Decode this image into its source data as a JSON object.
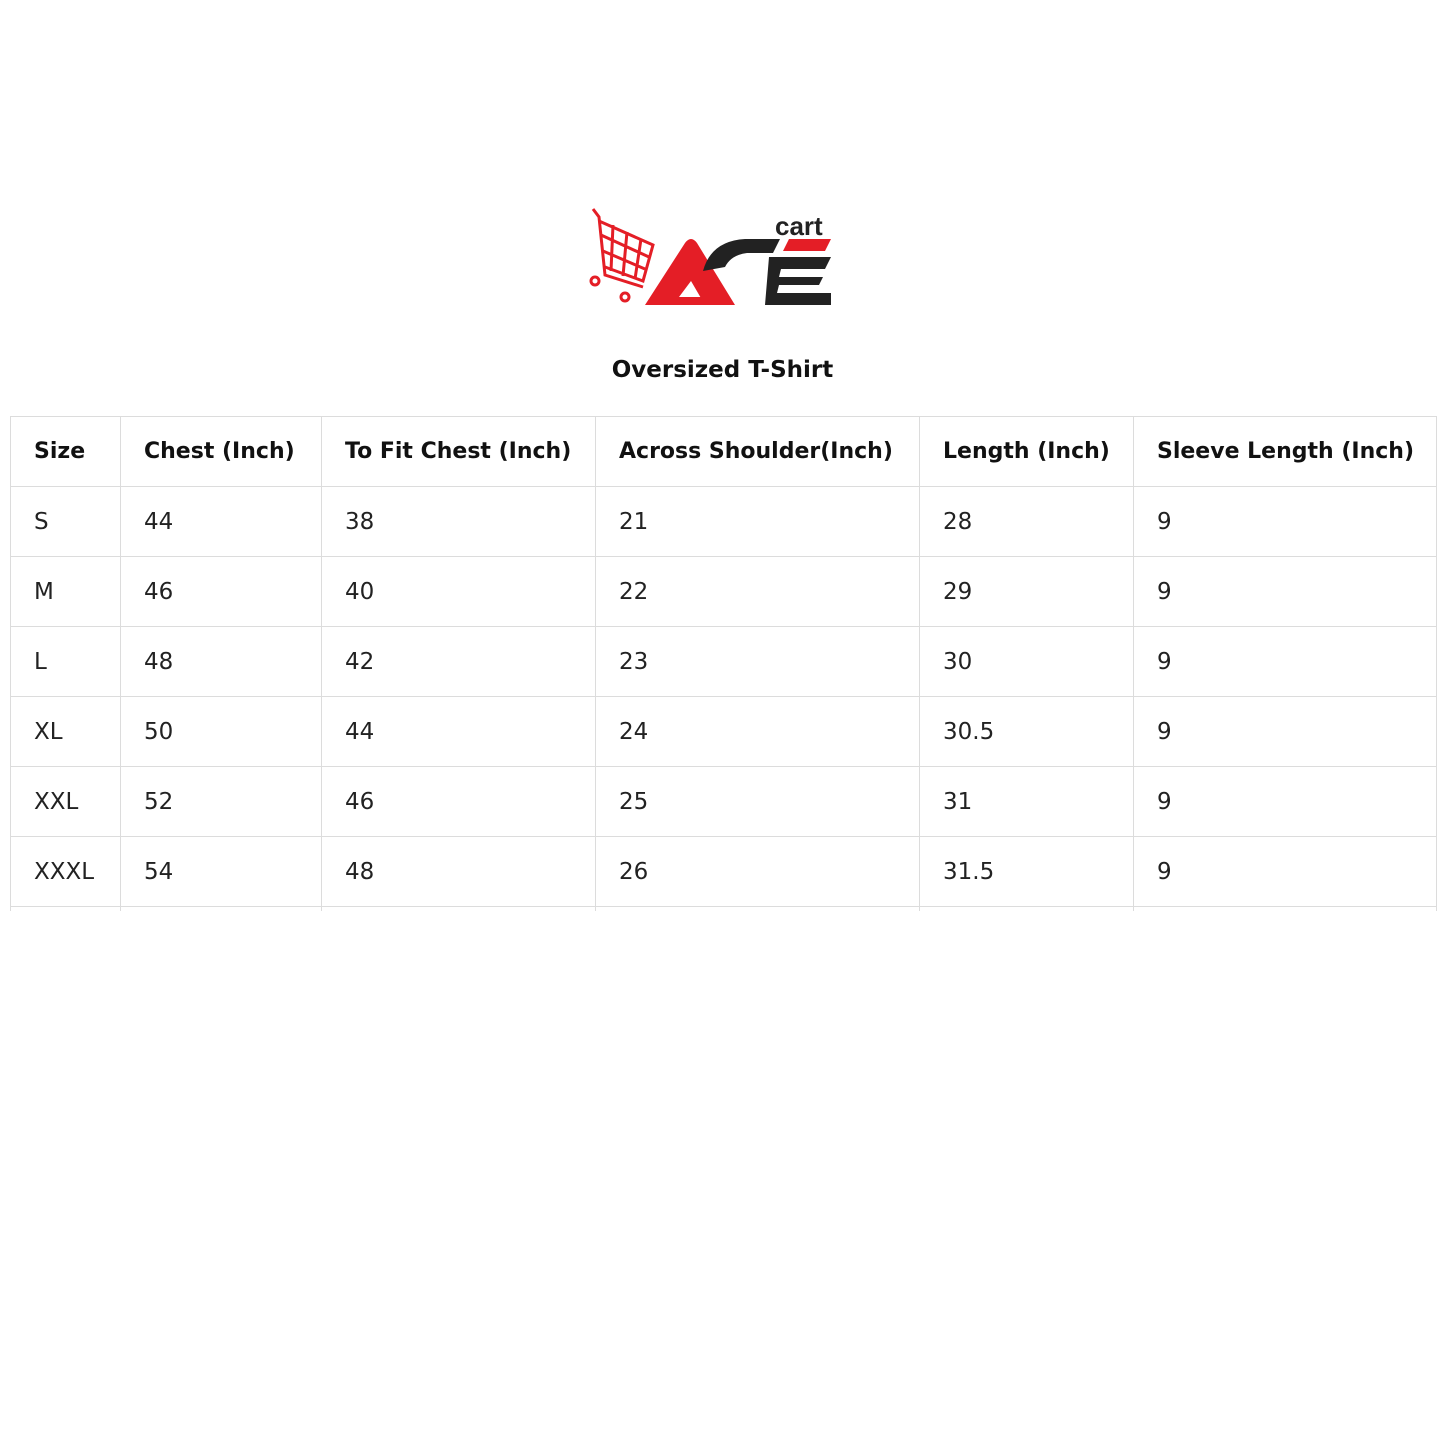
{
  "logo": {
    "text": "ACE cart",
    "brand_red": "#e41e26",
    "brand_dark": "#222222"
  },
  "title": "Oversized T-Shirt",
  "table": {
    "headers": [
      "Size",
      "Chest (Inch)",
      "To Fit Chest (Inch)",
      "Across Shoulder(Inch)",
      "Length (Inch)",
      "Sleeve Length (Inch)"
    ],
    "rows": [
      [
        "S",
        "44",
        "38",
        "21",
        "28",
        "9"
      ],
      [
        "M",
        "46",
        "40",
        "22",
        "29",
        "9"
      ],
      [
        "L",
        "48",
        "42",
        "23",
        "30",
        "9"
      ],
      [
        "XL",
        "50",
        "44",
        "24",
        "30.5",
        "9"
      ],
      [
        "XXL",
        "52",
        "46",
        "25",
        "31",
        "9"
      ],
      [
        "XXXL",
        "54",
        "48",
        "26",
        "31.5",
        "9"
      ]
    ]
  }
}
